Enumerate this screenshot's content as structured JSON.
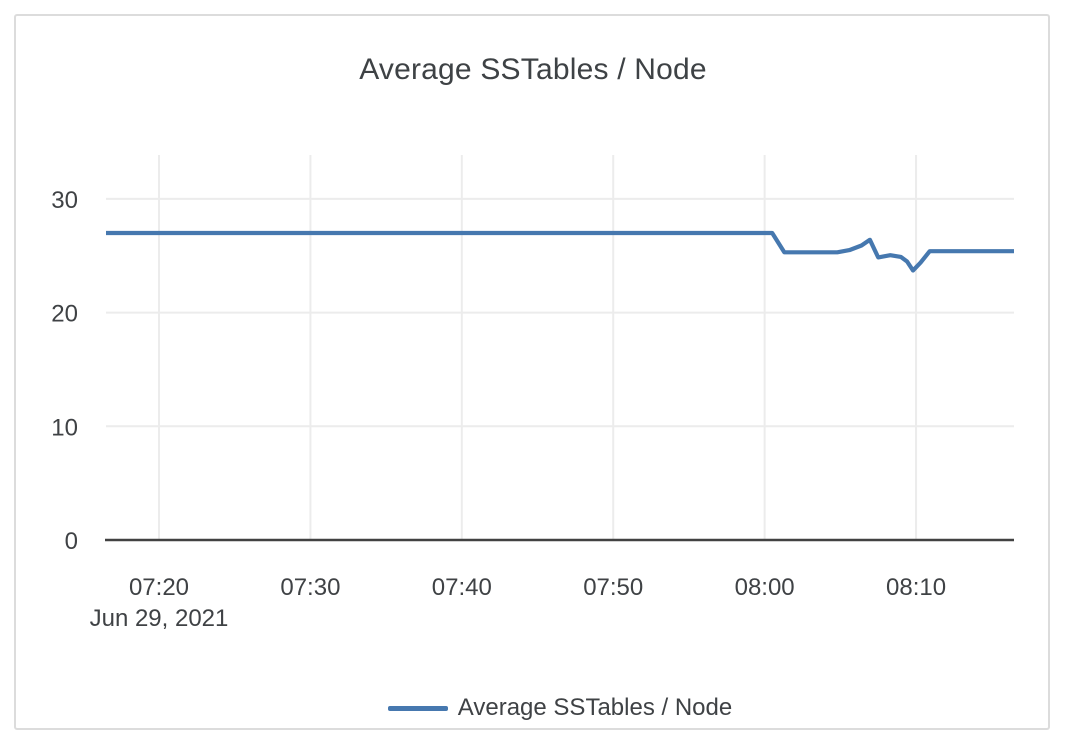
{
  "card": {
    "background": "#ffffff",
    "border_color": "#dcdcdc"
  },
  "title": "Average SSTables / Node",
  "legend": {
    "label": "Average SSTables / Node",
    "swatch_color": "#4678af"
  },
  "chart_data": {
    "type": "line",
    "title": "Average SSTables / Node",
    "grid": true,
    "legend_position": "bottom-center",
    "grid_color": "#ececec",
    "axis_color": "#424242",
    "text_color": "#3f4245",
    "x_axis": {
      "date_label": "Jun 29, 2021",
      "ticks": [
        {
          "label": "07:20",
          "t": 20
        },
        {
          "label": "07:30",
          "t": 30
        },
        {
          "label": "07:40",
          "t": 40
        },
        {
          "label": "07:50",
          "t": 50
        },
        {
          "label": "08:00",
          "t": 60
        },
        {
          "label": "08:10",
          "t": 70
        }
      ],
      "range_minutes": [
        16.5,
        76.47
      ],
      "units": "minutes after 07:00 on Jun 29, 2021"
    },
    "y_axis": {
      "ticks": [
        0,
        10,
        20,
        30
      ],
      "range": [
        0,
        33.86
      ]
    },
    "series": [
      {
        "name": "Average SSTables / Node",
        "color": "#4678af",
        "points": [
          [
            16.5,
            27
          ],
          [
            60.5,
            27
          ],
          [
            61.3,
            25.3
          ],
          [
            64.8,
            25.3
          ],
          [
            65.6,
            25.5
          ],
          [
            66.4,
            25.9
          ],
          [
            66.95,
            26.4
          ],
          [
            67.5,
            24.85
          ],
          [
            68.3,
            25.05
          ],
          [
            69.0,
            24.9
          ],
          [
            69.4,
            24.5
          ],
          [
            69.8,
            23.7
          ],
          [
            70.3,
            24.4
          ],
          [
            70.9,
            25.4
          ],
          [
            76.47,
            25.4
          ]
        ]
      }
    ]
  }
}
